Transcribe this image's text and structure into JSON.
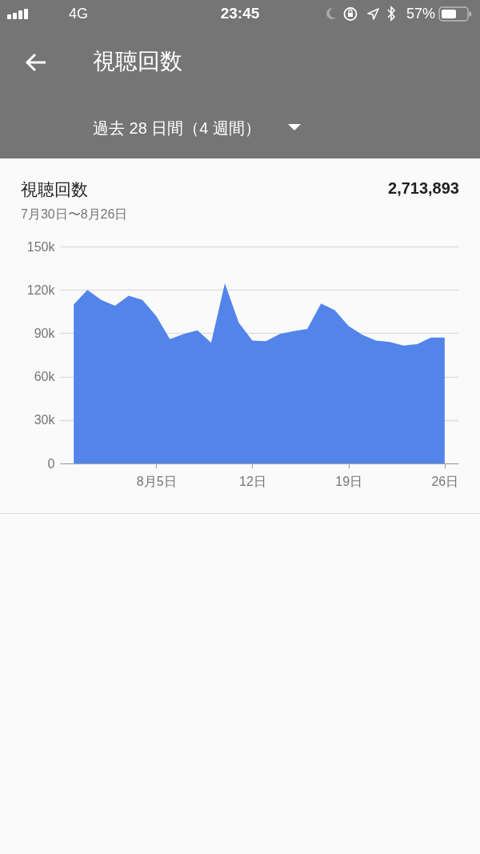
{
  "chart_data": {
    "type": "area",
    "title": "視聴回数",
    "subtitle": "7月30日〜8月26日",
    "annotations": [
      "4G",
      "23:45",
      "57%",
      "視聴回数",
      "過去 28 日間（4 週間）",
      "2,713,893"
    ],
    "categories": [
      null,
      null,
      null,
      null,
      null,
      null,
      "8月5日",
      null,
      null,
      null,
      null,
      null,
      null,
      "12日",
      null,
      null,
      null,
      null,
      null,
      null,
      "19日",
      null,
      null,
      null,
      null,
      null,
      null,
      "26日"
    ],
    "values": [
      110000,
      120000,
      113000,
      109000,
      116000,
      113000,
      102000,
      86000,
      89500,
      92000,
      83500,
      124500,
      97500,
      85000,
      84500,
      89500,
      91500,
      93000,
      110500,
      106000,
      95000,
      89000,
      85000,
      84000,
      81500,
      82500,
      87000,
      87000
    ],
    "color": "#5284ea",
    "ylim": [
      0,
      150000
    ],
    "yticks": [
      0,
      {
        "value": 30000,
        "label": "30k"
      },
      {
        "value": 60000,
        "label": "60k"
      },
      {
        "value": 90000,
        "label": "90k"
      },
      {
        "value": 120000,
        "label": "120k"
      },
      {
        "value": 150000,
        "label": "150k"
      }
    ],
    "grid": "y"
  }
}
